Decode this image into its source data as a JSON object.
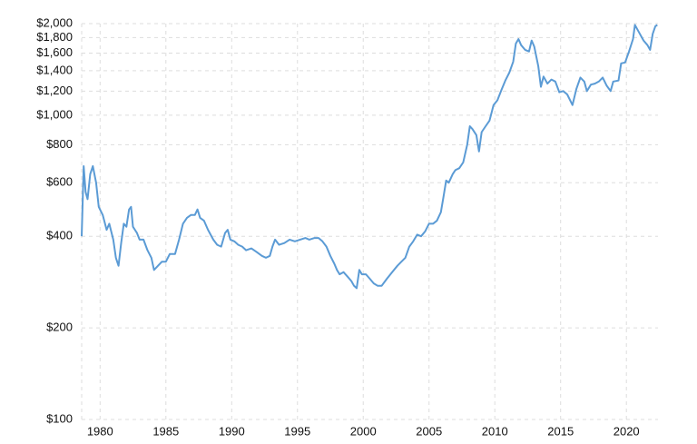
{
  "chart_data": {
    "type": "line",
    "color": "#5b9bd5",
    "log_y": true,
    "grid": true,
    "xlim": [
      1978.6,
      2022.4
    ],
    "xticks": [
      1980,
      1985,
      1990,
      1995,
      2000,
      2005,
      2010,
      2015,
      2020
    ],
    "ylim": [
      100,
      2000
    ],
    "yticks": [
      {
        "value": 100,
        "label": "$100"
      },
      {
        "value": 200,
        "label": "$200"
      },
      {
        "value": 400,
        "label": "$400"
      },
      {
        "value": 600,
        "label": "$600"
      },
      {
        "value": 800,
        "label": "$800"
      },
      {
        "value": 1000,
        "label": "$1,000"
      },
      {
        "value": 1200,
        "label": "$1,200"
      },
      {
        "value": 1400,
        "label": "$1,400"
      },
      {
        "value": 1600,
        "label": "$1,600"
      },
      {
        "value": 1800,
        "label": "$1,800"
      },
      {
        "value": 2000,
        "label": "$2,000"
      }
    ],
    "x": [
      1978.6,
      1978.75,
      1978.9,
      1979.05,
      1979.25,
      1979.45,
      1979.7,
      1979.9,
      1980.2,
      1980.5,
      1980.7,
      1981.0,
      1981.2,
      1981.4,
      1981.6,
      1981.8,
      1982.0,
      1982.2,
      1982.35,
      1982.5,
      1982.8,
      1983.0,
      1983.3,
      1983.6,
      1983.9,
      1984.1,
      1984.4,
      1984.7,
      1985.0,
      1985.3,
      1985.7,
      1986.0,
      1986.3,
      1986.6,
      1986.9,
      1987.2,
      1987.4,
      1987.6,
      1987.9,
      1988.2,
      1988.6,
      1988.9,
      1989.2,
      1989.5,
      1989.7,
      1989.9,
      1990.2,
      1990.5,
      1990.8,
      1991.1,
      1991.5,
      1991.9,
      1992.3,
      1992.6,
      1992.9,
      1993.1,
      1993.3,
      1993.6,
      1994.0,
      1994.4,
      1994.8,
      1995.2,
      1995.6,
      1995.9,
      1996.3,
      1996.6,
      1996.9,
      1997.2,
      1997.5,
      1997.8,
      1998.0,
      1998.2,
      1998.5,
      1998.8,
      1999.1,
      1999.3,
      1999.5,
      1999.7,
      1999.9,
      2000.2,
      2000.5,
      2000.8,
      2001.1,
      2001.4,
      2001.8,
      2002.2,
      2002.6,
      2002.9,
      2003.2,
      2003.5,
      2003.8,
      2004.1,
      2004.4,
      2004.7,
      2005.0,
      2005.3,
      2005.6,
      2005.9,
      2006.1,
      2006.3,
      2006.5,
      2006.8,
      2007.0,
      2007.3,
      2007.6,
      2007.9,
      2008.1,
      2008.3,
      2008.6,
      2008.8,
      2009.0,
      2009.3,
      2009.6,
      2009.9,
      2010.2,
      2010.5,
      2010.8,
      2011.1,
      2011.4,
      2011.6,
      2011.8,
      2012.0,
      2012.3,
      2012.6,
      2012.8,
      2013.0,
      2013.3,
      2013.5,
      2013.7,
      2014.0,
      2014.3,
      2014.6,
      2014.9,
      2015.2,
      2015.5,
      2015.9,
      2016.2,
      2016.5,
      2016.8,
      2017.0,
      2017.3,
      2017.6,
      2017.9,
      2018.2,
      2018.5,
      2018.8,
      2019.0,
      2019.4,
      2019.6,
      2019.9,
      2020.2,
      2020.5,
      2020.65,
      2020.9,
      2021.3,
      2021.6,
      2021.8,
      2022.0,
      2022.2,
      2022.35
    ],
    "values": [
      400,
      680,
      560,
      530,
      640,
      680,
      600,
      500,
      470,
      420,
      440,
      390,
      340,
      320,
      380,
      440,
      430,
      490,
      500,
      430,
      410,
      390,
      390,
      360,
      340,
      310,
      320,
      330,
      330,
      350,
      350,
      390,
      440,
      460,
      470,
      470,
      490,
      460,
      450,
      420,
      390,
      375,
      370,
      410,
      420,
      390,
      385,
      375,
      370,
      360,
      365,
      355,
      345,
      340,
      345,
      370,
      390,
      375,
      380,
      390,
      385,
      390,
      395,
      390,
      395,
      395,
      385,
      370,
      345,
      325,
      310,
      300,
      305,
      295,
      285,
      275,
      270,
      310,
      300,
      300,
      290,
      280,
      275,
      275,
      290,
      305,
      320,
      330,
      340,
      370,
      385,
      405,
      400,
      415,
      440,
      440,
      450,
      480,
      540,
      610,
      600,
      640,
      660,
      670,
      700,
      800,
      920,
      900,
      860,
      760,
      880,
      920,
      960,
      1080,
      1120,
      1210,
      1300,
      1380,
      1500,
      1720,
      1780,
      1700,
      1640,
      1620,
      1760,
      1680,
      1450,
      1240,
      1340,
      1270,
      1310,
      1290,
      1190,
      1200,
      1170,
      1080,
      1220,
      1330,
      1290,
      1200,
      1260,
      1270,
      1290,
      1330,
      1250,
      1200,
      1290,
      1300,
      1480,
      1490,
      1620,
      1780,
      1980,
      1890,
      1760,
      1700,
      1640,
      1850,
      1960,
      1980
    ]
  }
}
